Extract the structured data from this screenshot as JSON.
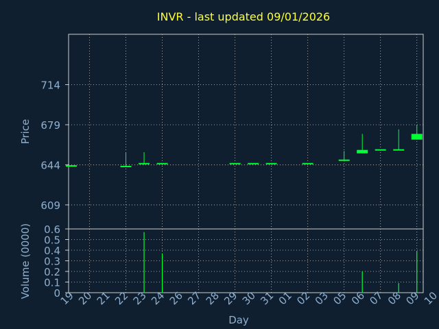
{
  "chart_data": {
    "type": "candlestick",
    "title": "INVR - last updated 09/01/2026",
    "xlabel": "Day",
    "colors": {
      "background": "#0f1f2f",
      "title": "#ffff33",
      "axis_text": "#8fb0d0",
      "grid": "#cccccc",
      "candle": "#00ff33"
    },
    "x_tick_labels": [
      "19",
      "20",
      "21",
      "22",
      "23",
      "24",
      "26",
      "27",
      "28",
      "29",
      "30",
      "31",
      "01",
      "02",
      "03",
      "05",
      "06",
      "07",
      "08",
      "09",
      "10"
    ],
    "price_panel": {
      "ylabel": "Price",
      "yticks": [
        609,
        644,
        679,
        714
      ],
      "ylim": [
        588,
        758
      ],
      "grid": true
    },
    "volume_panel": {
      "ylabel": "Volume (0000)",
      "yticks": [
        "0",
        "0.1",
        "0.2",
        "0.3",
        "0.4",
        "0.5",
        "0.6"
      ],
      "ylim": [
        0,
        0.6
      ],
      "grid": true
    },
    "candles": [
      {
        "day": "19",
        "open": 643,
        "close": 643,
        "high": 643,
        "low": 643,
        "volume": 0
      },
      {
        "day": "22",
        "open": 642.5,
        "close": 642.5,
        "high": 655,
        "low": 642,
        "volume": 0
      },
      {
        "day": "23",
        "open": 645,
        "close": 645,
        "high": 655,
        "low": 644,
        "volume": 0.57
      },
      {
        "day": "24",
        "open": 645,
        "close": 645,
        "high": 645.5,
        "low": 644.5,
        "volume": 0.37
      },
      {
        "day": "29",
        "open": 645,
        "close": 645,
        "high": 645,
        "low": 645,
        "volume": 0
      },
      {
        "day": "30",
        "open": 645,
        "close": 645,
        "high": 645,
        "low": 645,
        "volume": 0
      },
      {
        "day": "31",
        "open": 645,
        "close": 645,
        "high": 645,
        "low": 645,
        "volume": 0
      },
      {
        "day": "02",
        "open": 645,
        "close": 645,
        "high": 645,
        "low": 645,
        "volume": 0
      },
      {
        "day": "05",
        "open": 648,
        "close": 648,
        "high": 656,
        "low": 647,
        "volume": 0
      },
      {
        "day": "06",
        "open": 654,
        "close": 657,
        "high": 671,
        "low": 654,
        "volume": 0.2
      },
      {
        "day": "07",
        "open": 657,
        "close": 657,
        "high": 657,
        "low": 657,
        "volume": 0
      },
      {
        "day": "08",
        "open": 657,
        "close": 657,
        "high": 675,
        "low": 657,
        "volume": 0.09
      },
      {
        "day": "09",
        "open": 666,
        "close": 671,
        "high": 679,
        "low": 666,
        "volume": 0.39
      }
    ]
  }
}
